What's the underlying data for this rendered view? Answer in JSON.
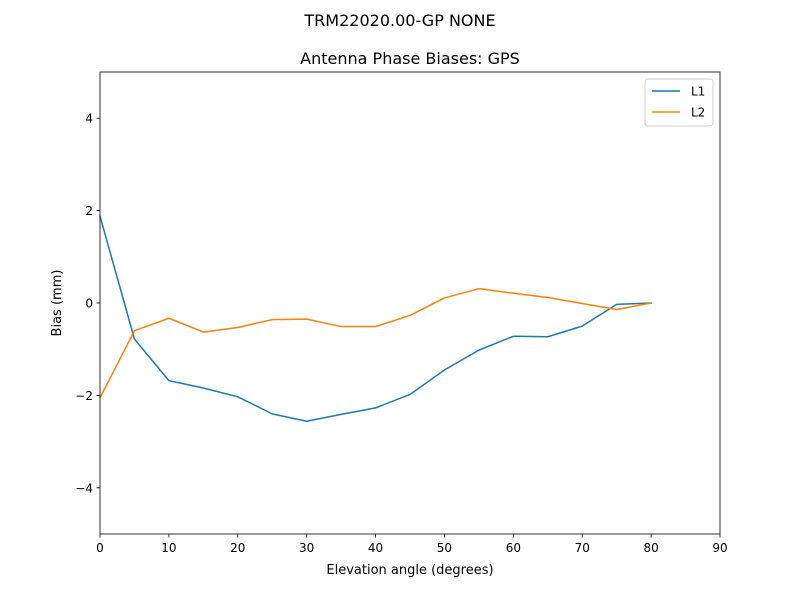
{
  "figure": {
    "suptitle": "TRM22020.00-GP  NONE"
  },
  "chart_data": {
    "type": "line",
    "title": "Antenna Phase Biases: GPS",
    "xlabel": "Elevation angle (degrees)",
    "ylabel": "Bias (mm)",
    "xlim": [
      0,
      90
    ],
    "ylim": [
      -5,
      5
    ],
    "xticks": [
      0,
      10,
      20,
      30,
      40,
      50,
      60,
      70,
      80,
      90
    ],
    "yticks": [
      -4,
      -2,
      0,
      2,
      4
    ],
    "xtick_labels": [
      "0",
      "10",
      "20",
      "30",
      "40",
      "50",
      "60",
      "70",
      "80",
      "90"
    ],
    "ytick_labels": [
      "−4",
      "−2",
      "0",
      "2",
      "4"
    ],
    "grid": false,
    "legend_position": "upper right",
    "x": [
      0,
      5,
      10,
      15,
      20,
      25,
      30,
      35,
      40,
      45,
      50,
      55,
      60,
      65,
      70,
      75,
      80
    ],
    "series": [
      {
        "name": "L1",
        "color": "#1f77b4",
        "values": [
          1.88,
          -0.78,
          -1.68,
          -1.84,
          -2.03,
          -2.4,
          -2.56,
          -2.41,
          -2.27,
          -1.98,
          -1.45,
          -1.02,
          -0.72,
          -0.73,
          -0.5,
          -0.03,
          0.0
        ]
      },
      {
        "name": "L2",
        "color": "#ff7f0e",
        "values": [
          -2.05,
          -0.6,
          -0.33,
          -0.63,
          -0.53,
          -0.36,
          -0.35,
          -0.51,
          -0.51,
          -0.27,
          0.11,
          0.31,
          0.21,
          0.12,
          -0.01,
          -0.14,
          0.0
        ]
      }
    ]
  }
}
